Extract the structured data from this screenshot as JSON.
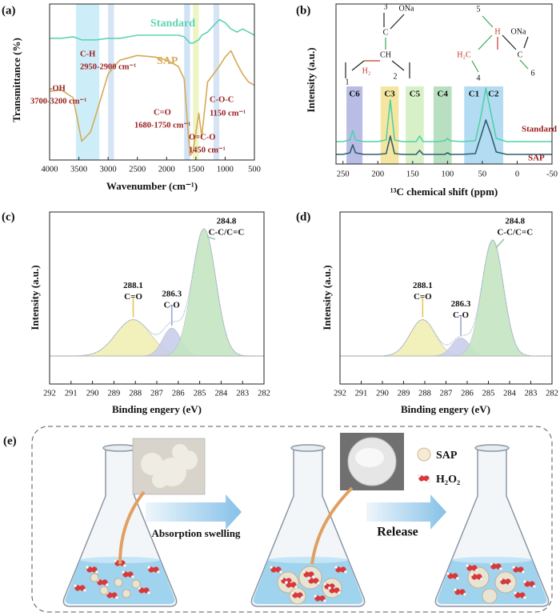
{
  "chart_data": [
    {
      "type": "line",
      "label": "(a)",
      "x_label": "Wavenumber (cm⁻¹)",
      "y_label": "Transmittance (%)",
      "xlim": [
        4000,
        500
      ],
      "xticks": [
        4000,
        3500,
        3000,
        2500,
        2000,
        1500,
        1000,
        500
      ],
      "ylim": [
        0,
        100
      ],
      "bands": [
        {
          "from": 3550,
          "to": 3150,
          "color": "#cdeef8"
        },
        {
          "from": 3000,
          "to": 2900,
          "color": "#d6e4f6"
        },
        {
          "from": 1700,
          "to": 1600,
          "color": "#cfe4f6"
        },
        {
          "from": 1550,
          "to": 1450,
          "color": "#eef4c4"
        },
        {
          "from": 1200,
          "to": 1100,
          "color": "#d6e4f6"
        }
      ],
      "x": [
        4000,
        3800,
        3600,
        3450,
        3300,
        3200,
        3000,
        2900,
        2800,
        2500,
        2200,
        2000,
        1800,
        1700,
        1600,
        1550,
        1450,
        1400,
        1300,
        1200,
        1100,
        1000,
        900,
        800,
        700,
        600,
        500
      ],
      "series": [
        {
          "name": "Standard",
          "color": "#5fd3b3",
          "values": [
            78,
            78,
            79,
            77,
            77,
            77,
            78,
            78,
            78,
            80,
            80,
            80,
            80,
            79,
            75,
            75,
            77,
            80,
            82,
            86,
            90,
            88,
            84,
            82,
            84,
            82,
            80
          ]
        },
        {
          "name": "SAP",
          "color": "#d7a955",
          "values": [
            44,
            45,
            40,
            12,
            18,
            30,
            55,
            60,
            64,
            67,
            66,
            64,
            60,
            52,
            3,
            5,
            30,
            15,
            50,
            55,
            60,
            66,
            70,
            62,
            55,
            50,
            48
          ]
        }
      ],
      "annotations": [
        "C-H",
        "2950-2900 cm⁻¹",
        "-OH",
        "3700-3200 cm⁻¹",
        "C=O",
        "1680-1750 cm⁻¹",
        "O=C-O",
        "1450 cm⁻¹",
        "C-O-C",
        "1150 cm⁻¹"
      ]
    },
    {
      "type": "line",
      "label": "(b)",
      "x_label": "¹³C chemical shift (ppm)",
      "y_label": "Intensity (a.u.)",
      "xlim": [
        260,
        -50
      ],
      "xticks": [
        250,
        200,
        150,
        100,
        50,
        0,
        -50
      ],
      "ylim": [
        0,
        200
      ],
      "bands": [
        {
          "from": 245,
          "to": 222,
          "color": "#b9bde6",
          "labels": [
            "C6"
          ]
        },
        {
          "from": 196,
          "to": 170,
          "color": "#f4e6a0",
          "labels": [
            "C3"
          ]
        },
        {
          "from": 160,
          "to": 134,
          "color": "#d8f0c8",
          "labels": [
            "C5"
          ]
        },
        {
          "from": 120,
          "to": 94,
          "color": "#b8e0c0",
          "labels": [
            "C4"
          ]
        },
        {
          "from": 76,
          "to": 20,
          "color": "#b3dcf2",
          "labels": [
            "C1",
            "C2"
          ]
        }
      ],
      "x": [
        260,
        250,
        240,
        236,
        232,
        220,
        200,
        188,
        182,
        176,
        165,
        145,
        140,
        135,
        115,
        104,
        100,
        96,
        80,
        60,
        52,
        45,
        38,
        30,
        15,
        0,
        -25,
        -50
      ],
      "series": [
        {
          "name": "Standard",
          "color": "#4fd2a8",
          "values": [
            28,
            28,
            30,
            42,
            30,
            28,
            28,
            30,
            80,
            30,
            28,
            28,
            35,
            28,
            28,
            29,
            32,
            29,
            28,
            29,
            60,
            95,
            65,
            32,
            28,
            28,
            28,
            28
          ]
        },
        {
          "name": "SAP",
          "color": "#2f5f6e",
          "values": [
            12,
            12,
            14,
            24,
            14,
            12,
            12,
            13,
            35,
            13,
            12,
            12,
            17,
            12,
            12,
            12,
            14,
            12,
            12,
            13,
            35,
            55,
            38,
            15,
            12,
            12,
            12,
            12
          ]
        }
      ],
      "structure_labels": [
        "3",
        "ONa",
        "C",
        "CH",
        "H₂",
        "1",
        "2",
        "5",
        "H",
        "ONa",
        "H₂C",
        "C",
        "4",
        "6"
      ]
    },
    {
      "type": "peaks",
      "label": "(c)",
      "x_label": "Binding engery (eV)",
      "y_label": "Intensity (a.u.)",
      "xlim": [
        292,
        282
      ],
      "xticks": [
        292,
        291,
        290,
        289,
        288,
        287,
        286,
        285,
        284,
        283,
        282
      ],
      "ylim": [
        -20,
        103
      ],
      "peaks": [
        {
          "center": 288.1,
          "height": 26,
          "fwhm": 1.9,
          "name": "C=O",
          "color": "#f1eeb4"
        },
        {
          "center": 286.3,
          "height": 20,
          "fwhm": 1.0,
          "name": "C-O",
          "color": "#c9cdea"
        },
        {
          "center": 284.8,
          "height": 91,
          "fwhm": 1.3,
          "name": "C-C/C=C",
          "color": "#c4e6c2"
        }
      ]
    },
    {
      "type": "peaks",
      "label": "(d)",
      "x_label": "Binding engery (eV)",
      "y_label": "Intensity (a.u.)",
      "xlim": [
        292,
        282
      ],
      "xticks": [
        292,
        291,
        290,
        289,
        288,
        287,
        286,
        285,
        284,
        283,
        282
      ],
      "ylim": [
        -20,
        103
      ],
      "peaks": [
        {
          "center": 288.1,
          "height": 26,
          "fwhm": 1.4,
          "name": "C=O",
          "color": "#f1eeb4"
        },
        {
          "center": 286.3,
          "height": 13,
          "fwhm": 1.0,
          "name": "C-O",
          "color": "#c9cdea"
        },
        {
          "center": 284.8,
          "height": 83,
          "fwhm": 1.2,
          "name": "C-C/C=C",
          "color": "#c4e6c2"
        }
      ]
    }
  ],
  "scheme": {
    "label": "(e)",
    "steps": [
      "Absorption swelling",
      "Release"
    ],
    "legend": [
      "SAP",
      "H₂O₂"
    ]
  }
}
